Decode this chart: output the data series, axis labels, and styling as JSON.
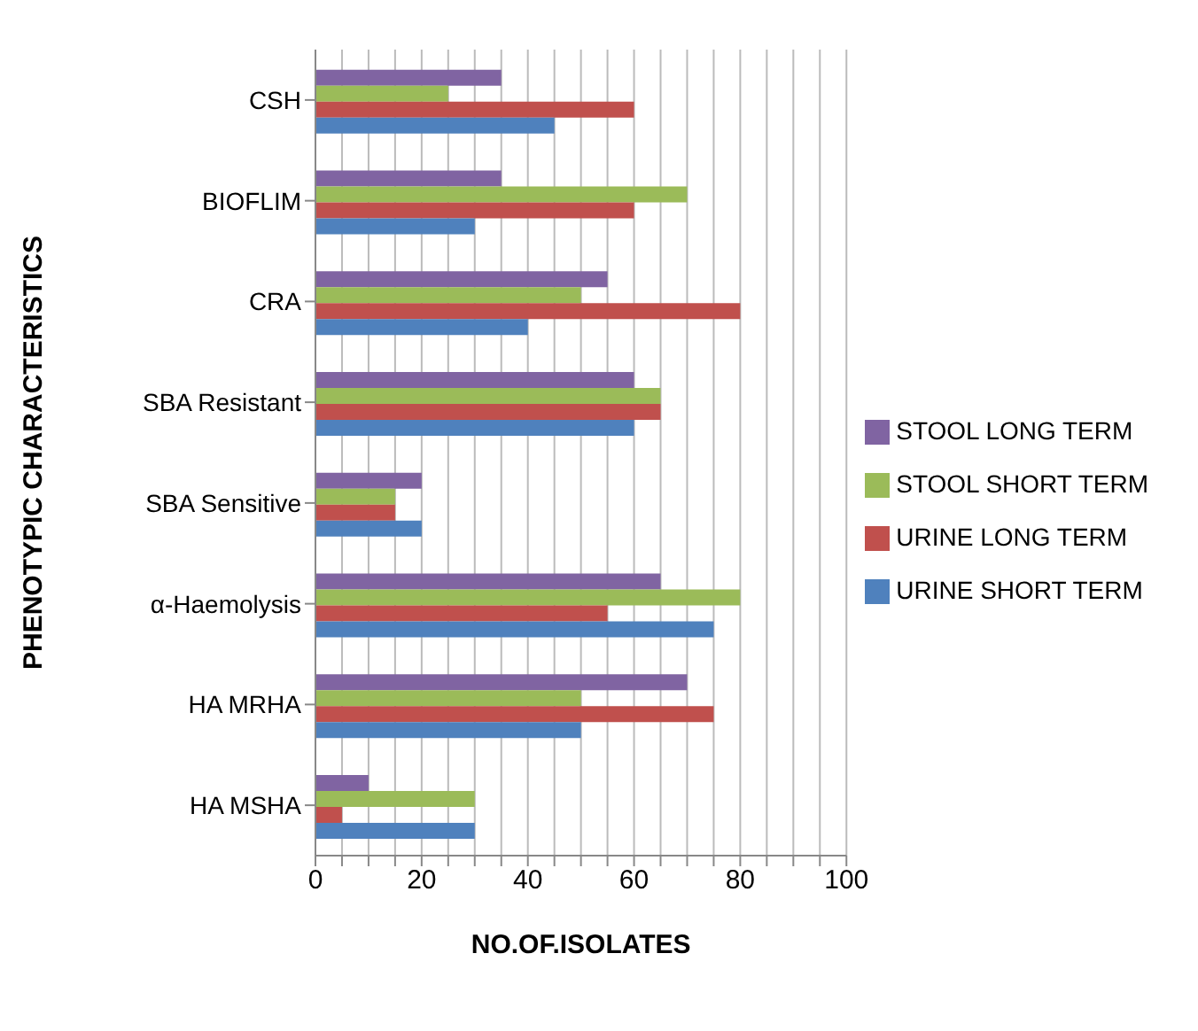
{
  "chart_data": {
    "type": "bar",
    "orientation": "horizontal",
    "xlabel": "NO.OF.ISOLATES",
    "ylabel": "PHENOTYPIC CHARACTERISTICS",
    "categories": [
      "CSH",
      "BIOFLIM",
      "CRA",
      "SBA Resistant",
      "SBA Sensitive",
      "α-Haemolysis",
      "HA MRHA",
      "HA MSHA"
    ],
    "series": [
      {
        "name": "STOOL LONG TERM",
        "color": "#8064a2",
        "values": [
          35,
          35,
          55,
          60,
          20,
          65,
          70,
          10
        ]
      },
      {
        "name": "STOOL SHORT TERM",
        "color": "#9bbb59",
        "values": [
          25,
          70,
          50,
          65,
          15,
          80,
          50,
          30
        ]
      },
      {
        "name": "URINE LONG TERM",
        "color": "#c0504d",
        "values": [
          60,
          60,
          80,
          65,
          15,
          55,
          75,
          5
        ]
      },
      {
        "name": "URINE SHORT TERM",
        "color": "#4f81bd",
        "values": [
          45,
          30,
          40,
          60,
          20,
          75,
          50,
          30
        ]
      }
    ],
    "xlim": [
      0,
      100
    ],
    "xticks": [
      0,
      {
        "value": 5,
        "label": null
      },
      {
        "value": 10,
        "label": null
      },
      {
        "value": 15,
        "label": null
      },
      20,
      {
        "value": 25,
        "label": null
      },
      {
        "value": 30,
        "label": null
      },
      {
        "value": 35,
        "label": null
      },
      40,
      {
        "value": 45,
        "label": null
      },
      {
        "value": 50,
        "label": null
      },
      {
        "value": 55,
        "label": null
      },
      60,
      {
        "value": 65,
        "label": null
      },
      {
        "value": 70,
        "label": null
      },
      {
        "value": 75,
        "label": null
      },
      80,
      {
        "value": 85,
        "label": null
      },
      {
        "value": 90,
        "label": null
      },
      {
        "value": 95,
        "label": null
      },
      100
    ],
    "grid": "x",
    "legend": "right"
  }
}
